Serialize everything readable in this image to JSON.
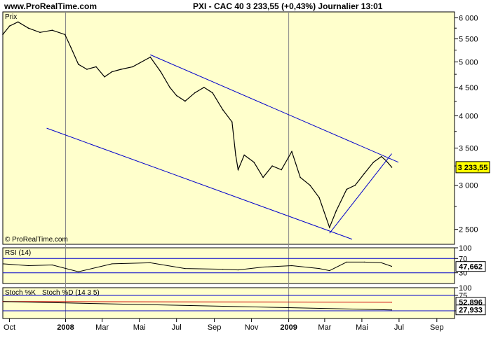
{
  "header": {
    "site": "www.ProRealTime.com",
    "title": "PXI - CAC 40   3 233,55 (+0,43%)   Journalier  13:01"
  },
  "colors": {
    "plot_bg": "#ffffcc",
    "price_line": "#000000",
    "trend_line": "#0000cc",
    "last_price_box": "#ffff00",
    "stoch_d_line": "#cc0000"
  },
  "chart_data": [
    {
      "type": "line",
      "panel": "price",
      "panel_label": "Prix",
      "watermark": "© ProRealTime.com",
      "scale": "log",
      "ylim": [
        2350,
        6150
      ],
      "yticks": [
        {
          "v": 6000,
          "label": "6 000"
        },
        {
          "v": 5500,
          "label": "5 500"
        },
        {
          "v": 5000,
          "label": "5 000"
        },
        {
          "v": 4500,
          "label": "4 500"
        },
        {
          "v": 4000,
          "label": "4 000"
        },
        {
          "v": 3500,
          "label": "3 500"
        },
        {
          "v": 3000,
          "label": "3 000"
        },
        {
          "v": 2500,
          "label": "2 500"
        }
      ],
      "x_start": "2007-09-20",
      "x_end": "2009-09-30",
      "xticks": [
        {
          "date": "2007-10-01",
          "label": "Oct",
          "bold": false
        },
        {
          "date": "2008-01-01",
          "label": "2008",
          "bold": true
        },
        {
          "date": "2008-03-01",
          "label": "Mar",
          "bold": false
        },
        {
          "date": "2008-05-01",
          "label": "Mai",
          "bold": false
        },
        {
          "date": "2008-07-01",
          "label": "Jul",
          "bold": false
        },
        {
          "date": "2008-09-01",
          "label": "Sep",
          "bold": false
        },
        {
          "date": "2008-11-01",
          "label": "Nov",
          "bold": false
        },
        {
          "date": "2009-01-01",
          "label": "2009",
          "bold": true
        },
        {
          "date": "2009-03-01",
          "label": "Mar",
          "bold": false
        },
        {
          "date": "2009-05-01",
          "label": "Mai",
          "bold": false
        },
        {
          "date": "2009-07-01",
          "label": "Jul",
          "bold": false
        },
        {
          "date": "2009-09-01",
          "label": "Sep",
          "bold": false
        }
      ],
      "series": [
        {
          "dates": [
            "2007-09-20",
            "2007-10-01",
            "2007-10-15",
            "2007-11-01",
            "2007-11-20",
            "2007-12-10",
            "2007-12-31",
            "2008-01-10",
            "2008-01-22",
            "2008-02-05",
            "2008-02-20",
            "2008-03-05",
            "2008-03-17",
            "2008-04-01",
            "2008-04-20",
            "2008-05-19",
            "2008-06-05",
            "2008-06-20",
            "2008-07-01",
            "2008-07-15",
            "2008-07-31",
            "2008-08-15",
            "2008-08-29",
            "2008-09-15",
            "2008-09-30",
            "2008-10-06",
            "2008-10-10",
            "2008-10-20",
            "2008-11-05",
            "2008-11-20",
            "2008-12-05",
            "2008-12-20",
            "2009-01-06",
            "2009-01-20",
            "2009-02-05",
            "2009-02-20",
            "2009-03-09",
            "2009-03-20",
            "2009-04-06",
            "2009-04-20",
            "2009-05-05",
            "2009-05-20",
            "2009-06-02",
            "2009-06-10",
            "2009-06-19"
          ],
          "values": [
            5600,
            5800,
            5900,
            5750,
            5650,
            5700,
            5600,
            5300,
            4950,
            4850,
            4900,
            4700,
            4800,
            4850,
            4900,
            5100,
            4800,
            4500,
            4350,
            4250,
            4400,
            4500,
            4400,
            4100,
            3900,
            3400,
            3200,
            3400,
            3300,
            3100,
            3250,
            3200,
            3450,
            3100,
            3000,
            2850,
            2520,
            2700,
            2950,
            3000,
            3150,
            3300,
            3380,
            3320,
            3233
          ]
        }
      ],
      "last_price": {
        "value": 3233.55,
        "label": "3 233,55"
      },
      "trend_lines": [
        {
          "from": {
            "date": "2008-05-19",
            "value": 5150
          },
          "to": {
            "date": "2009-06-30",
            "value": 3300
          }
        },
        {
          "from": {
            "date": "2007-12-01",
            "value": 3800
          },
          "to": {
            "date": "2009-04-15",
            "value": 2400
          }
        },
        {
          "from": {
            "date": "2009-03-09",
            "value": 2460
          },
          "to": {
            "date": "2009-06-19",
            "value": 3420
          }
        }
      ]
    },
    {
      "type": "line",
      "panel": "rsi",
      "panel_label": "RSI (14)",
      "ylim": [
        0,
        100
      ],
      "yticks": [
        {
          "v": 100,
          "label": "100"
        },
        {
          "v": 70,
          "label": "70"
        },
        {
          "v": 30,
          "label": "30"
        }
      ],
      "levels": [
        70,
        30
      ],
      "last_value": {
        "value": 47.662,
        "label": "47,662"
      },
      "series": [
        {
          "dates": [
            "2007-09-20",
            "2007-11-01",
            "2007-12-10",
            "2008-01-22",
            "2008-03-17",
            "2008-05-19",
            "2008-07-15",
            "2008-09-15",
            "2008-10-10",
            "2008-11-20",
            "2009-01-06",
            "2009-02-20",
            "2009-03-09",
            "2009-04-06",
            "2009-05-05",
            "2009-06-02",
            "2009-06-19"
          ],
          "values": [
            55,
            50,
            52,
            33,
            55,
            58,
            42,
            40,
            38,
            46,
            50,
            42,
            36,
            60,
            60,
            58,
            48
          ]
        }
      ]
    },
    {
      "type": "line",
      "panel": "stochastic",
      "panel_label": "Stoch %K",
      "panel_label_2": "Stoch %D (14 3 5)",
      "ylim": [
        0,
        100
      ],
      "yticks": [
        {
          "v": 100,
          "label": "100"
        },
        {
          "v": 75,
          "label": "75"
        },
        {
          "v": 25,
          "label": "25"
        }
      ],
      "levels": [
        75,
        25
      ],
      "last_values": [
        {
          "value": 52.896,
          "label": "52,896"
        },
        {
          "value": 27.933,
          "label": "27,933"
        }
      ],
      "series": [
        {
          "name": "Stoch %K",
          "dates": [
            "2007-09-20",
            "2009-06-19"
          ],
          "values": [
            55,
            27.933
          ]
        },
        {
          "name": "Stoch %D (14 3 5)",
          "dates": [
            "2007-09-20",
            "2009-06-19"
          ],
          "values": [
            55,
            52.896
          ]
        }
      ]
    }
  ]
}
